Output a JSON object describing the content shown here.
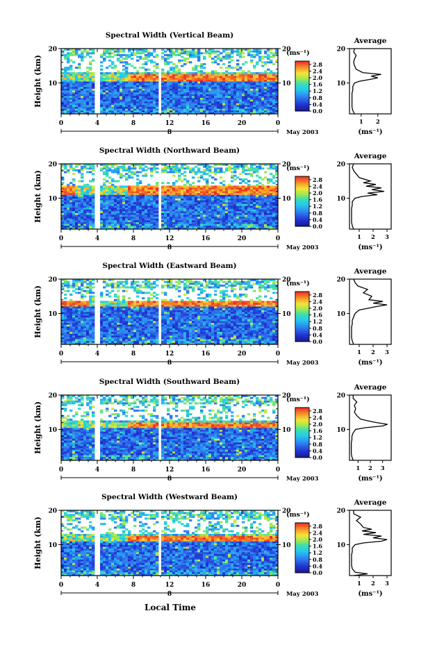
{
  "figure": {
    "xlabel": "Local Time",
    "date_label": "May 2003"
  },
  "panels_common": {
    "ylabel": "Height (km)",
    "unit_label": "(ms⁻¹)",
    "colorbar_ticks": [
      "2.8",
      "2.4",
      "2.0",
      "1.6",
      "1.2",
      "0.8",
      "0.4",
      "0.0"
    ],
    "avg_title": "Average",
    "avg_xlabel": "(ms⁻¹)"
  },
  "chart_data": [
    {
      "type": "heatmap",
      "title": "Spectral Width (Vertical Beam)",
      "ylabel": "Height (km)",
      "xlabel": "Local Time",
      "x_ticks": [
        "0",
        "4",
        "8",
        "12",
        "16",
        "20",
        "0"
      ],
      "date_tick": "8",
      "y_ticks": [
        "20",
        "10"
      ],
      "ylim": [
        1,
        20
      ],
      "xlim": [
        0,
        24
      ],
      "colorbar": {
        "label": "(ms⁻¹)",
        "range": [
          0.0,
          3.0
        ]
      },
      "data_gaps_hours": [
        [
          3.8,
          4.2
        ],
        [
          10.8,
          11.2
        ]
      ],
      "high_width_layer_km": [
        10.5,
        12.5
      ],
      "average_profile": {
        "title": "Average",
        "xlabel": "(ms⁻¹)",
        "x_ticks": [
          "1",
          "2"
        ],
        "xlim": [
          0.3,
          2.8
        ],
        "heights": [
          1,
          2,
          3,
          4,
          5,
          6,
          7,
          8,
          9,
          10,
          10.5,
          11,
          11.5,
          12,
          12.5,
          13,
          13.5,
          14,
          15,
          16,
          17,
          18,
          19,
          20
        ],
        "values": [
          0.6,
          0.5,
          0.45,
          0.45,
          0.45,
          0.45,
          0.45,
          0.5,
          0.5,
          0.6,
          0.9,
          1.5,
          2.0,
          1.6,
          2.2,
          1.1,
          0.9,
          0.7,
          0.6,
          0.55,
          0.6,
          0.7,
          0.55,
          0.6
        ]
      }
    },
    {
      "type": "heatmap",
      "title": "Spectral Width (Northward Beam)",
      "ylabel": "Height (km)",
      "xlabel": "Local Time",
      "x_ticks": [
        "0",
        "4",
        "8",
        "12",
        "16",
        "20",
        "0"
      ],
      "date_tick": "8",
      "y_ticks": [
        "20",
        "10"
      ],
      "ylim": [
        1,
        20
      ],
      "xlim": [
        0,
        24
      ],
      "colorbar": {
        "label": "(ms⁻¹)",
        "range": [
          0.0,
          3.0
        ]
      },
      "data_gaps_hours": [
        [
          3.8,
          4.2
        ],
        [
          10.8,
          11.2
        ]
      ],
      "high_width_layer_km": [
        11,
        13.5
      ],
      "average_profile": {
        "title": "Average",
        "xlabel": "(ms⁻¹)",
        "x_ticks": [
          "1",
          "2",
          "3"
        ],
        "xlim": [
          0.3,
          3.3
        ],
        "heights": [
          1,
          2,
          3,
          4,
          5,
          6,
          7,
          8,
          9,
          10,
          10.5,
          11,
          11.5,
          12,
          12.5,
          13,
          13.5,
          14,
          14.5,
          15,
          16,
          17,
          18,
          19,
          20
        ],
        "values": [
          0.6,
          0.5,
          0.45,
          0.45,
          0.45,
          0.45,
          0.45,
          0.5,
          0.5,
          0.7,
          1.2,
          2.3,
          1.6,
          2.8,
          1.9,
          2.6,
          1.5,
          2.2,
          1.3,
          1.8,
          1.0,
          0.8,
          0.6,
          0.5,
          0.6
        ]
      }
    },
    {
      "type": "heatmap",
      "title": "Spectral Width (Eastward Beam)",
      "ylabel": "Height (km)",
      "xlabel": "Local Time",
      "x_ticks": [
        "0",
        "4",
        "8",
        "12",
        "16",
        "20",
        "0"
      ],
      "date_tick": "8",
      "y_ticks": [
        "20",
        "10"
      ],
      "ylim": [
        1,
        20
      ],
      "xlim": [
        0,
        24
      ],
      "colorbar": {
        "label": "(ms⁻¹)",
        "range": [
          0.0,
          3.0
        ]
      },
      "data_gaps_hours": [
        [
          3.8,
          4.2
        ],
        [
          10.8,
          11.2
        ]
      ],
      "high_width_layer_km": [
        12,
        13.5
      ],
      "average_profile": {
        "title": "Average",
        "xlabel": "(ms⁻¹)",
        "x_ticks": [
          "1",
          "2",
          "3"
        ],
        "xlim": [
          0.3,
          3.3
        ],
        "heights": [
          1,
          2,
          3,
          4,
          5,
          6,
          7,
          8,
          9,
          10,
          11,
          11.5,
          12,
          12.5,
          13,
          13.5,
          14,
          15,
          16,
          17,
          18,
          19,
          20
        ],
        "values": [
          0.6,
          0.5,
          0.45,
          0.45,
          0.45,
          0.45,
          0.5,
          0.5,
          0.6,
          0.7,
          1.0,
          1.6,
          2.2,
          3.0,
          2.0,
          2.7,
          1.7,
          1.9,
          1.3,
          1.6,
          0.9,
          0.7,
          0.6
        ]
      }
    },
    {
      "type": "heatmap",
      "title": "Spectral Width (Southward Beam)",
      "ylabel": "Height (km)",
      "xlabel": "Local Time",
      "x_ticks": [
        "0",
        "4",
        "8",
        "12",
        "16",
        "20",
        "0"
      ],
      "date_tick": "8",
      "y_ticks": [
        "20",
        "10"
      ],
      "ylim": [
        1,
        20
      ],
      "xlim": [
        0,
        24
      ],
      "colorbar": {
        "label": "(ms⁻¹)",
        "range": [
          0.0,
          3.0
        ]
      },
      "data_gaps_hours": [
        [
          3.8,
          4.2
        ],
        [
          10.8,
          11.2
        ]
      ],
      "high_width_layer_km": [
        10.5,
        12
      ],
      "average_profile": {
        "title": "Average",
        "xlabel": "(ms⁻¹)",
        "x_ticks": [
          "1",
          "2",
          "3"
        ],
        "xlim": [
          0.3,
          3.7
        ],
        "heights": [
          1,
          2,
          3,
          4,
          5,
          6,
          7,
          8,
          9,
          10,
          10.5,
          11,
          11.5,
          12,
          12.5,
          13,
          14,
          15,
          16,
          17,
          18,
          19,
          20
        ],
        "values": [
          0.6,
          0.5,
          0.45,
          0.45,
          0.45,
          0.45,
          0.5,
          0.5,
          0.6,
          0.8,
          1.6,
          3.0,
          3.4,
          2.5,
          1.8,
          1.2,
          0.9,
          0.7,
          0.8,
          0.7,
          0.9,
          0.6,
          0.6
        ]
      }
    },
    {
      "type": "heatmap",
      "title": "Spectral Width (Westward Beam)",
      "ylabel": "Height (km)",
      "xlabel": "Local Time",
      "x_ticks": [
        "0",
        "4",
        "8",
        "12",
        "16",
        "20",
        "0"
      ],
      "date_tick": "8",
      "y_ticks": [
        "20",
        "10"
      ],
      "ylim": [
        1,
        20
      ],
      "xlim": [
        0,
        24
      ],
      "colorbar": {
        "label": "(ms⁻¹)",
        "range": [
          0.0,
          3.0
        ]
      },
      "data_gaps_hours": [
        [
          3.8,
          4.2
        ],
        [
          10.8,
          11.2
        ]
      ],
      "high_width_layer_km": [
        11,
        12.5
      ],
      "average_profile": {
        "title": "Average",
        "xlabel": "(ms⁻¹)",
        "x_ticks": [
          "1",
          "2",
          "3"
        ],
        "xlim": [
          0.3,
          3.3
        ],
        "heights": [
          1,
          1.5,
          2,
          3,
          4,
          5,
          6,
          7,
          8,
          9,
          10,
          10.5,
          11,
          11.5,
          12,
          12.5,
          13,
          13.5,
          14,
          14.5,
          15,
          16,
          17,
          18,
          19,
          20
        ],
        "values": [
          0.6,
          1.6,
          0.7,
          0.5,
          0.45,
          0.45,
          0.45,
          0.45,
          0.5,
          0.5,
          0.7,
          1.3,
          2.6,
          3.0,
          2.0,
          2.6,
          1.3,
          2.2,
          1.2,
          1.9,
          1.3,
          1.1,
          0.8,
          1.1,
          0.6,
          0.6
        ]
      }
    }
  ]
}
